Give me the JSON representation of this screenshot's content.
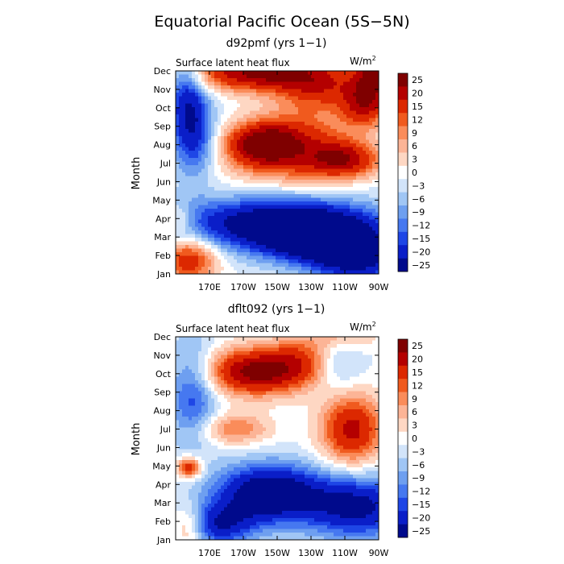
{
  "figure_title": "Equatorial Pacific Ocean (5S−5N)",
  "chart_data": [
    {
      "type": "heatmap",
      "title": "d92pmf (yrs 1−1)",
      "subtitle": "Surface latent heat flux",
      "units_base": "W/m",
      "units_exp": "2",
      "ylabel": "Month",
      "xlabel": "",
      "x_ticks": [
        "170E",
        "170W",
        "150W",
        "130W",
        "110W",
        "90W"
      ],
      "y_ticks": [
        "Jan",
        "Feb",
        "Mar",
        "Apr",
        "May",
        "Jun",
        "Jul",
        "Aug",
        "Sep",
        "Oct",
        "Nov",
        "Dec"
      ],
      "xlim": [
        150,
        270
      ],
      "ylim": [
        1,
        12
      ],
      "colorbar_levels": [
        "25",
        "20",
        "15",
        "12",
        "9",
        "6",
        "3",
        "0",
        "−3",
        "−6",
        "−9",
        "−12",
        "−15",
        "−20",
        "−25"
      ],
      "features": [
        {
          "lon": 200,
          "month": 11.9,
          "value": 26,
          "sx": 30,
          "sy": 0.7
        },
        {
          "lon": 268,
          "month": 11.8,
          "value": 22,
          "sx": 8,
          "sy": 0.8
        },
        {
          "lon": 235,
          "month": 11.0,
          "value": 14,
          "sx": 18,
          "sy": 0.9
        },
        {
          "lon": 262,
          "month": 10.2,
          "value": 20,
          "sx": 10,
          "sy": 0.9
        },
        {
          "lon": 200,
          "month": 8.0,
          "value": 24,
          "sx": 15,
          "sy": 0.8
        },
        {
          "lon": 222,
          "month": 8.2,
          "value": 16,
          "sx": 22,
          "sy": 1.2
        },
        {
          "lon": 250,
          "month": 7.2,
          "value": 20,
          "sx": 15,
          "sy": 0.7
        },
        {
          "lon": 215,
          "month": 6.5,
          "value": 5,
          "sx": 28,
          "sy": 0.8
        },
        {
          "lon": 210,
          "month": 3.7,
          "value": -27,
          "sx": 40,
          "sy": 1.0
        },
        {
          "lon": 235,
          "month": 2.8,
          "value": -22,
          "sx": 22,
          "sy": 0.9
        },
        {
          "lon": 258,
          "month": 1.8,
          "value": -20,
          "sx": 18,
          "sy": 1.0
        },
        {
          "lon": 158,
          "month": 1.8,
          "value": 19,
          "sx": 12,
          "sy": 0.9
        },
        {
          "lon": 152,
          "month": 4.0,
          "value": 8,
          "sx": 6,
          "sy": 0.5
        },
        {
          "lon": 156,
          "month": 10.5,
          "value": -16,
          "sx": 8,
          "sy": 2.2
        },
        {
          "lon": 163,
          "month": 8.5,
          "value": -12,
          "sx": 8,
          "sy": 1.6
        }
      ]
    },
    {
      "type": "heatmap",
      "title": "dflt092 (yrs 1−1)",
      "subtitle": "Surface latent heat flux",
      "units_base": "W/m",
      "units_exp": "2",
      "ylabel": "Month",
      "xlabel": "",
      "x_ticks": [
        "170E",
        "170W",
        "150W",
        "130W",
        "110W",
        "90W"
      ],
      "y_ticks": [
        "Jan",
        "Feb",
        "Mar",
        "Apr",
        "May",
        "Jun",
        "Jul",
        "Aug",
        "Sep",
        "Oct",
        "Nov",
        "Dec"
      ],
      "xlim": [
        150,
        270
      ],
      "ylim": [
        1,
        12
      ],
      "colorbar_levels": [
        "25",
        "20",
        "15",
        "12",
        "9",
        "6",
        "3",
        "0",
        "−3",
        "−6",
        "−9",
        "−12",
        "−15",
        "−20",
        "−25"
      ],
      "features": [
        {
          "lon": 198,
          "month": 10.1,
          "value": 27,
          "sx": 22,
          "sy": 0.9
        },
        {
          "lon": 225,
          "month": 10.9,
          "value": 10,
          "sx": 15,
          "sy": 0.9
        },
        {
          "lon": 254,
          "month": 7.0,
          "value": 22,
          "sx": 13,
          "sy": 1.4
        },
        {
          "lon": 185,
          "month": 7.0,
          "value": 12,
          "sx": 15,
          "sy": 0.6
        },
        {
          "lon": 205,
          "month": 3.5,
          "value": -28,
          "sx": 22,
          "sy": 1.1
        },
        {
          "lon": 258,
          "month": 2.8,
          "value": -22,
          "sx": 22,
          "sy": 1.2
        },
        {
          "lon": 175,
          "month": 1.8,
          "value": -18,
          "sx": 15,
          "sy": 0.8
        },
        {
          "lon": 158,
          "month": 4.9,
          "value": 20,
          "sx": 5,
          "sy": 0.4
        },
        {
          "lon": 158,
          "month": 1.7,
          "value": 12,
          "sx": 7,
          "sy": 0.8
        },
        {
          "lon": 160,
          "month": 9.0,
          "value": -14,
          "sx": 10,
          "sy": 2.0
        },
        {
          "lon": 246,
          "month": 10.5,
          "value": -8,
          "sx": 10,
          "sy": 1.2
        },
        {
          "lon": 250,
          "month": 12.0,
          "value": 8,
          "sx": 14,
          "sy": 0.5
        }
      ]
    }
  ]
}
